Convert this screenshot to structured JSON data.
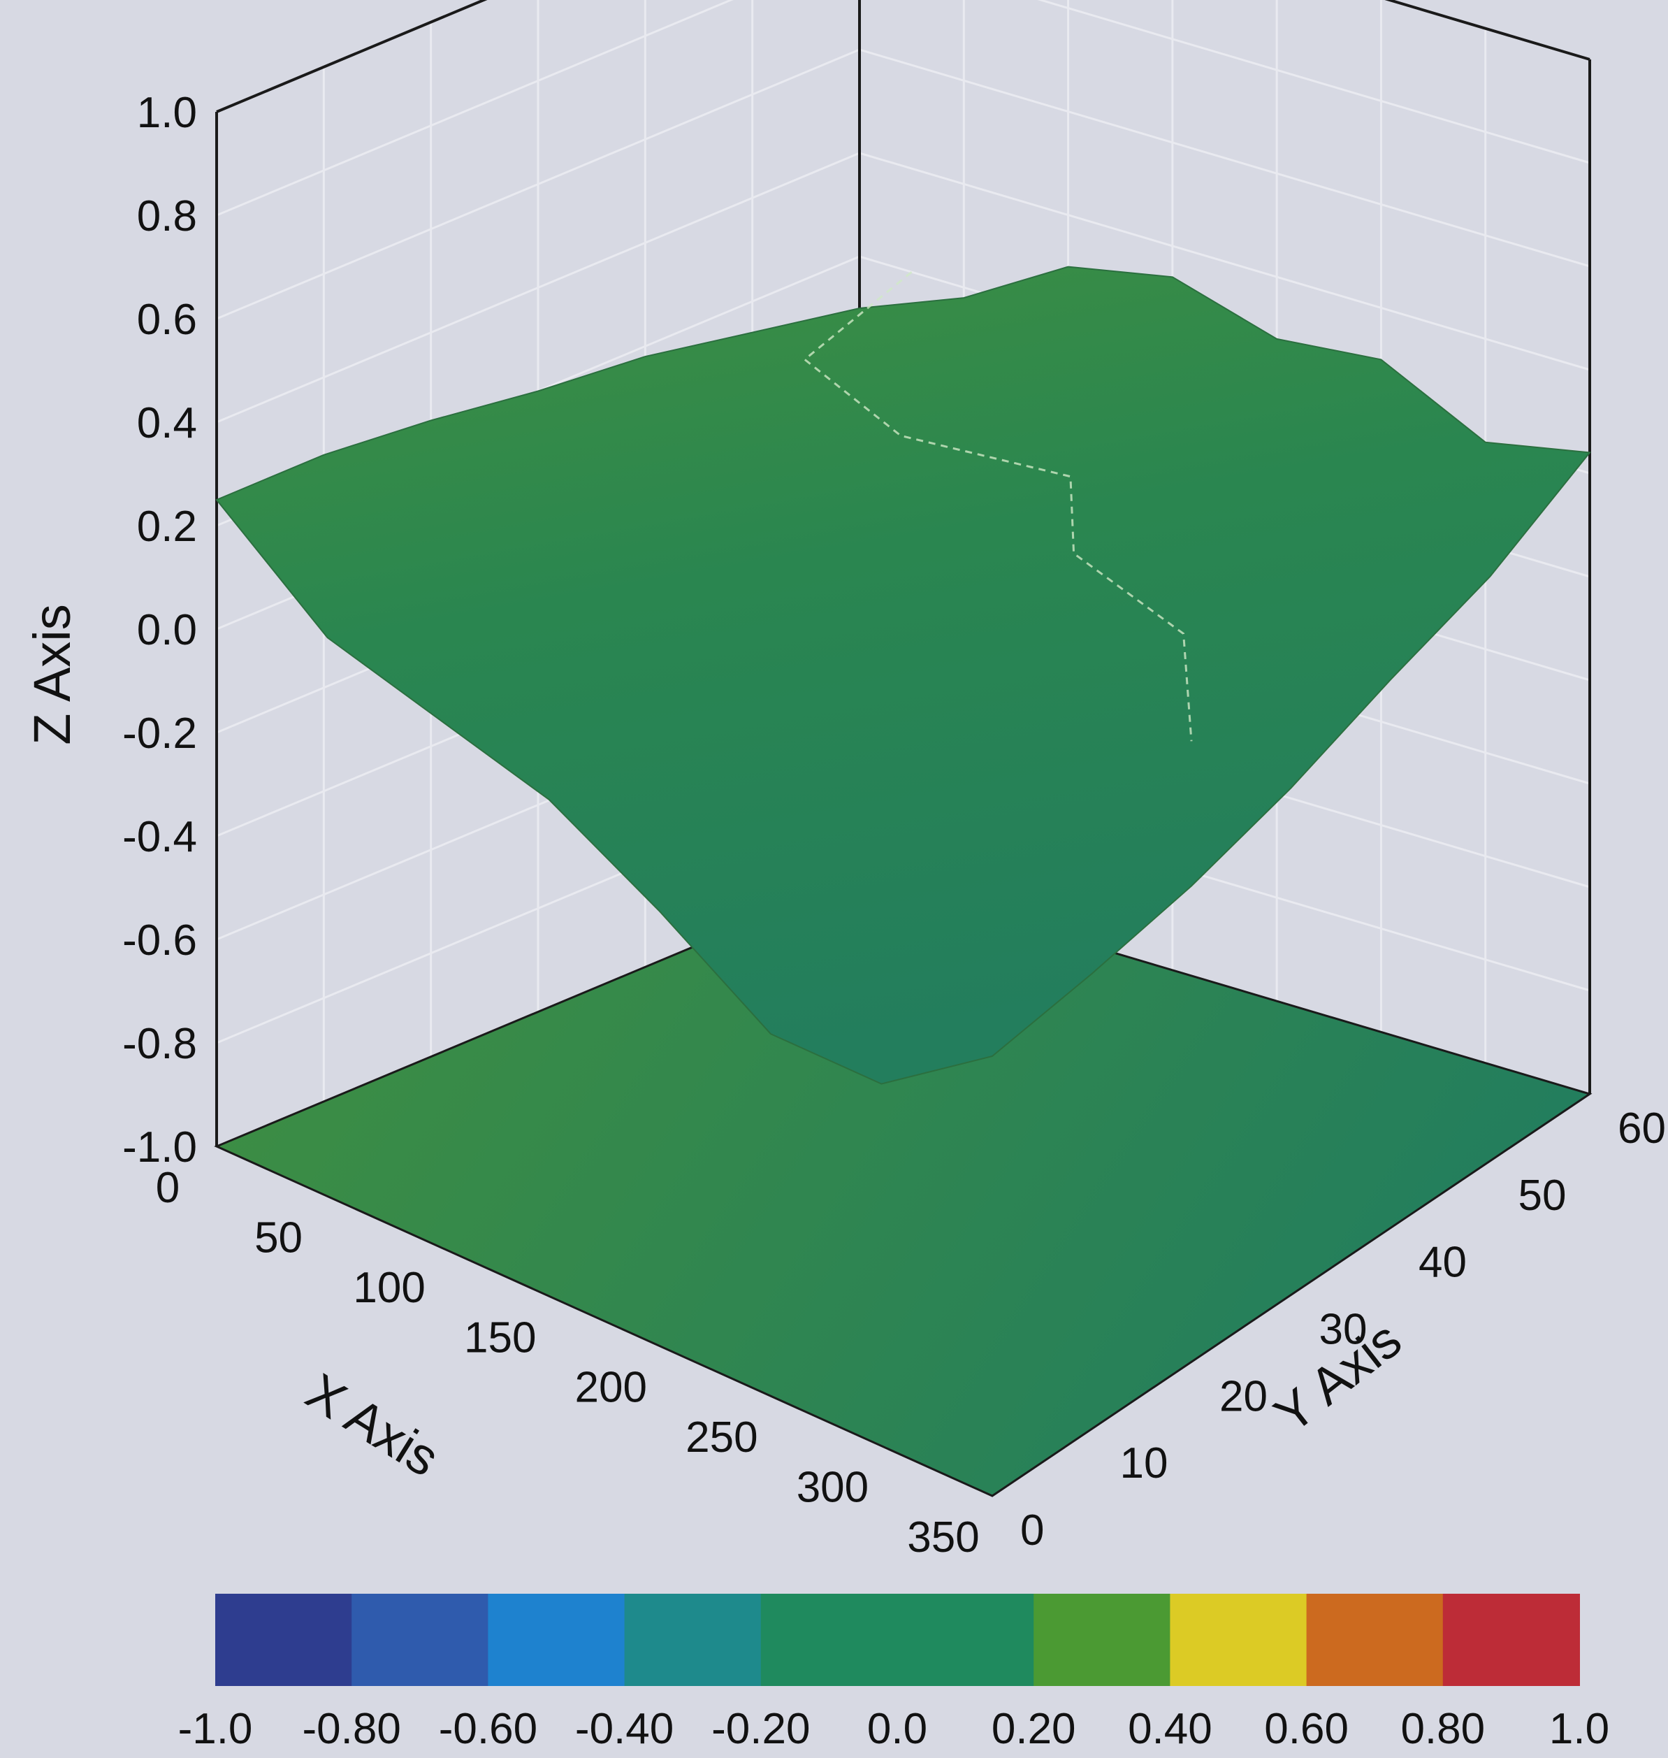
{
  "chart_data": {
    "type": "surface3d",
    "axes": {
      "x": {
        "label": "X Axis",
        "range": [
          0,
          350
        ],
        "ticks": [
          "0",
          "50",
          "100",
          "150",
          "200",
          "250",
          "300",
          "350"
        ]
      },
      "y": {
        "label": "Y Axis",
        "range": [
          0,
          60
        ],
        "ticks": [
          "0",
          "10",
          "20",
          "30",
          "40",
          "50",
          "60"
        ]
      },
      "z": {
        "label": "Z Axis",
        "range": [
          -1.0,
          1.0
        ],
        "ticks": [
          "-1.0",
          "-0.8",
          "-0.6",
          "-0.4",
          "-0.2",
          "0.0",
          "0.2",
          "0.4",
          "0.6",
          "0.8",
          "1.0"
        ]
      }
    },
    "grid": true,
    "projection_plane_z": -1.0,
    "contour_level": 0.2,
    "surface_profiles": [
      {
        "edge": "x=0",
        "y": [
          0,
          10,
          20,
          30,
          40,
          50,
          60
        ],
        "z": [
          0.25,
          0.25,
          0.23,
          0.2,
          0.18,
          0.14,
          0.1
        ]
      },
      {
        "edge": "y=60",
        "x": [
          0,
          50,
          100,
          150,
          200,
          250,
          300,
          350
        ],
        "z": [
          0.1,
          0.18,
          0.3,
          0.34,
          0.28,
          0.3,
          0.2,
          0.24
        ]
      },
      {
        "edge": "x=350",
        "y": [
          0,
          10,
          20,
          30,
          40,
          50,
          60
        ],
        "z": [
          -0.15,
          -0.12,
          -0.08,
          -0.02,
          0.06,
          0.13,
          0.24
        ]
      },
      {
        "edge": "y=0",
        "x": [
          0,
          50,
          100,
          150,
          200,
          250,
          300,
          350
        ],
        "z": [
          0.25,
          0.08,
          0.02,
          -0.04,
          -0.16,
          -0.3,
          -0.3,
          -0.15
        ]
      }
    ],
    "colorbar": {
      "labels": [
        "-1.0",
        "-0.80",
        "-0.60",
        "-0.40",
        "-0.20",
        "0.0",
        "0.20",
        "0.40",
        "0.60",
        "0.80",
        "1.0"
      ],
      "colors": [
        "#2e3d8f",
        "#2f5bad",
        "#1e82cf",
        "#1e8a8c",
        "#1f8a5e",
        "#1f8a5e",
        "#4b9a33",
        "#dccb25",
        "#cc6a1f",
        "#bd2c37"
      ]
    },
    "surface_colors": {
      "high": "#3f8f41",
      "low": "#237e5d",
      "floor": "#2a8a56",
      "contour": "#cfe8c6"
    }
  }
}
